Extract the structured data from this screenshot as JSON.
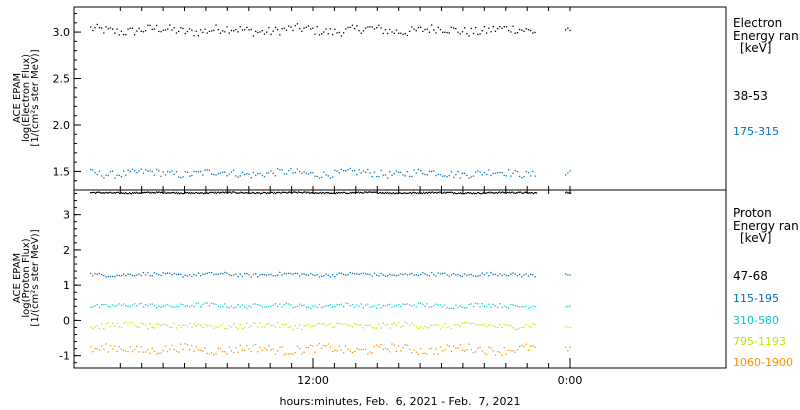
{
  "chart_data": [
    {
      "type": "scatter",
      "ylabel": [
        "ACE EPAM",
        "log(Electron Flux)",
        "[1/(cm²s ster MeV)]"
      ],
      "ylim": [
        1.3,
        3.27
      ],
      "yticks": [
        "1.5",
        "2.0",
        "2.5",
        "3.0"
      ],
      "legend_title": [
        "Electron",
        "Energy ran",
        "[keV]"
      ],
      "series": [
        {
          "name": "38-53",
          "color": "#000000",
          "level": 3.02,
          "jitter": 0.05
        },
        {
          "name": "175-315",
          "color": "#0070c0",
          "level": 1.48,
          "jitter": 0.04
        }
      ]
    },
    {
      "type": "scatter",
      "ylabel": [
        "ACE EPAM",
        "log(Proton Flux)",
        "[1/(cm²s ster MeV)]"
      ],
      "ylim": [
        -1.35,
        3.7
      ],
      "yticks": [
        "-1",
        "0",
        "1",
        "2",
        "3"
      ],
      "legend_title": [
        "Proton",
        "Energy ran",
        "[keV]"
      ],
      "series": [
        {
          "name": "47-68",
          "color": "#000000",
          "level": 3.62,
          "jitter": 0.02
        },
        {
          "name": "115-195",
          "color": "#0070c0",
          "level": 1.3,
          "jitter": 0.05
        },
        {
          "name": "310-580",
          "color": "#00d0d0",
          "level": 0.42,
          "jitter": 0.06
        },
        {
          "name": "795-1193",
          "color": "#c8e000",
          "level": -0.15,
          "jitter": 0.08
        },
        {
          "name": "1060-1900",
          "color": "#ff8c00",
          "level": -0.82,
          "jitter": 0.12
        }
      ]
    }
  ],
  "xaxis": {
    "tick_labels": [
      "12:00",
      "0:00"
    ],
    "title": "hours:minutes, Feb.  6, 2021 - Feb.  7, 2021"
  }
}
